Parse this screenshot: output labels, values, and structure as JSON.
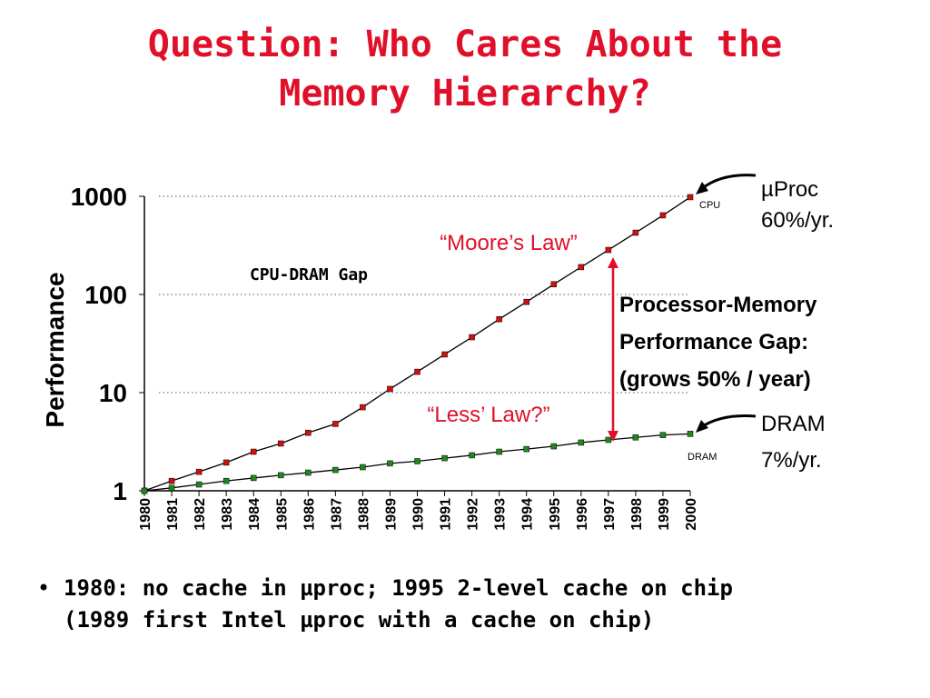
{
  "title": [
    "Question: Who Cares About the",
    "Memory Hierarchy?"
  ],
  "chart_data": {
    "type": "line",
    "y_label": "Performance",
    "categories": [
      "1980",
      "1981",
      "1982",
      "1983",
      "1984",
      "1985",
      "1986",
      "1987",
      "1988",
      "1989",
      "1990",
      "1991",
      "1992",
      "1993",
      "1994",
      "1995",
      "1996",
      "1997",
      "1998",
      "1999",
      "2000"
    ],
    "series": [
      {
        "name": "CPU",
        "color": "#d01010",
        "values": [
          1,
          1.26,
          1.56,
          1.94,
          2.5,
          3.03,
          3.9,
          4.8,
          7.1,
          10.9,
          16.3,
          24.5,
          36.7,
          56,
          84,
          127,
          190,
          284,
          426,
          640,
          980
        ]
      },
      {
        "name": "DRAM",
        "color": "#1e8a1e",
        "values": [
          1,
          1.07,
          1.16,
          1.26,
          1.35,
          1.44,
          1.53,
          1.63,
          1.74,
          1.9,
          2.0,
          2.15,
          2.3,
          2.5,
          2.66,
          2.84,
          3.1,
          3.3,
          3.5,
          3.7,
          3.8
        ]
      }
    ],
    "yscale": "log",
    "ylim": [
      1,
      1000
    ],
    "yticks": [
      1,
      10,
      100,
      1000
    ],
    "grid": true,
    "annotations": {
      "cpu_rate": [
        "µProc",
        "60%/yr."
      ],
      "moores_law": "“Moore’s Law”",
      "gap_label": "CPU-DRAM Gap",
      "gap_note": [
        "Processor-Memory",
        "Performance Gap:",
        "(grows 50% / year)"
      ],
      "less_law": "“Less’ Law?”",
      "dram_rate": [
        "DRAM",
        "7%/yr."
      ]
    }
  },
  "bullet": [
    "1980: no cache in µproc; 1995 2-level cache on chip",
    "(1989 first Intel µproc with a cache on chip)"
  ]
}
